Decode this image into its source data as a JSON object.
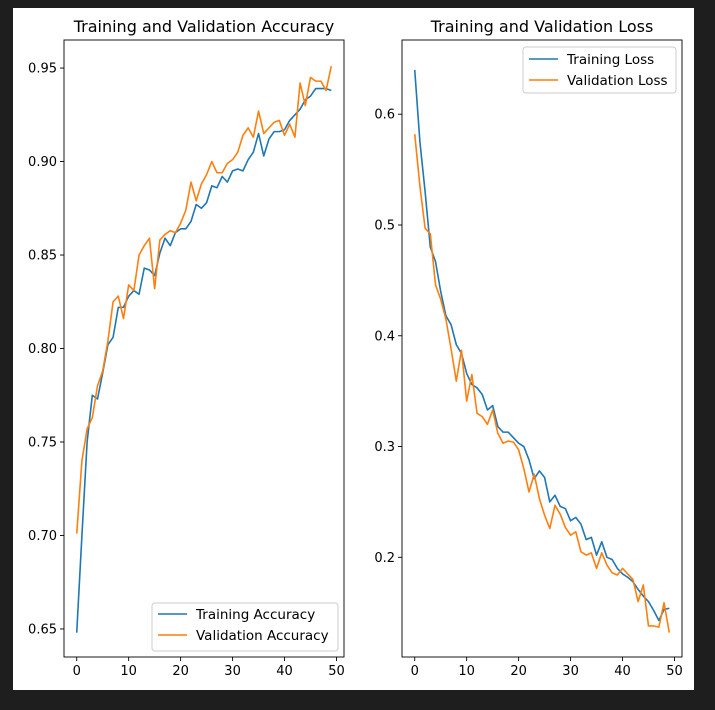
{
  "colors": {
    "training": "#1f77b4",
    "validation": "#ff7f0e",
    "background": "#1e1e1e",
    "figure": "#ffffff"
  },
  "chart_data": [
    {
      "type": "line",
      "title": "Training and Validation Accuracy",
      "xlabel": "",
      "ylabel": "",
      "xlim": [
        -2.45,
        51.45
      ],
      "ylim": [
        0.635,
        0.965
      ],
      "xticks": [
        0,
        10,
        20,
        30,
        40,
        50
      ],
      "yticks": [
        0.65,
        0.7,
        0.75,
        0.8,
        0.85,
        0.9,
        0.95
      ],
      "ytick_labels": [
        "0.65",
        "0.70",
        "0.75",
        "0.80",
        "0.85",
        "0.90",
        "0.95"
      ],
      "legend_position": "lower-right",
      "x": [
        0,
        1,
        2,
        3,
        4,
        5,
        6,
        7,
        8,
        9,
        10,
        11,
        12,
        13,
        14,
        15,
        16,
        17,
        18,
        19,
        20,
        21,
        22,
        23,
        24,
        25,
        26,
        27,
        28,
        29,
        30,
        31,
        32,
        33,
        34,
        35,
        36,
        37,
        38,
        39,
        40,
        41,
        42,
        43,
        44,
        45,
        46,
        47,
        48,
        49
      ],
      "series": [
        {
          "name": "Training Accuracy",
          "color": "#1f77b4",
          "values": [
            0.648,
            0.7,
            0.75,
            0.775,
            0.773,
            0.787,
            0.802,
            0.806,
            0.822,
            0.822,
            0.828,
            0.831,
            0.829,
            0.843,
            0.842,
            0.839,
            0.851,
            0.859,
            0.855,
            0.862,
            0.864,
            0.864,
            0.868,
            0.877,
            0.875,
            0.878,
            0.887,
            0.886,
            0.892,
            0.889,
            0.895,
            0.896,
            0.895,
            0.901,
            0.905,
            0.915,
            0.903,
            0.912,
            0.916,
            0.916,
            0.917,
            0.922,
            0.925,
            0.928,
            0.933,
            0.935,
            0.939,
            0.939,
            0.939,
            0.938
          ]
        },
        {
          "name": "Validation Accuracy",
          "color": "#ff7f0e",
          "values": [
            0.701,
            0.74,
            0.757,
            0.763,
            0.78,
            0.788,
            0.804,
            0.825,
            0.828,
            0.816,
            0.834,
            0.831,
            0.85,
            0.855,
            0.859,
            0.832,
            0.858,
            0.861,
            0.863,
            0.862,
            0.867,
            0.874,
            0.889,
            0.879,
            0.888,
            0.893,
            0.9,
            0.894,
            0.894,
            0.899,
            0.901,
            0.905,
            0.914,
            0.918,
            0.913,
            0.927,
            0.915,
            0.918,
            0.921,
            0.922,
            0.914,
            0.92,
            0.913,
            0.942,
            0.93,
            0.945,
            0.943,
            0.943,
            0.938,
            0.951
          ]
        }
      ]
    },
    {
      "type": "line",
      "title": "Training and Validation Loss",
      "xlabel": "",
      "ylabel": "",
      "xlim": [
        -2.45,
        51.45
      ],
      "ylim": [
        0.11,
        0.667
      ],
      "xticks": [
        0,
        10,
        20,
        30,
        40,
        50
      ],
      "yticks": [
        0.2,
        0.3,
        0.4,
        0.5,
        0.6
      ],
      "ytick_labels": [
        "0.2",
        "0.3",
        "0.4",
        "0.5",
        "0.6"
      ],
      "legend_position": "upper-right",
      "x": [
        0,
        1,
        2,
        3,
        4,
        5,
        6,
        7,
        8,
        9,
        10,
        11,
        12,
        13,
        14,
        15,
        16,
        17,
        18,
        19,
        20,
        21,
        22,
        23,
        24,
        25,
        26,
        27,
        28,
        29,
        30,
        31,
        32,
        33,
        34,
        35,
        36,
        37,
        38,
        39,
        40,
        41,
        42,
        43,
        44,
        45,
        46,
        47,
        48,
        49
      ],
      "series": [
        {
          "name": "Training Loss",
          "color": "#1f77b4",
          "values": [
            0.64,
            0.575,
            0.53,
            0.48,
            0.467,
            0.44,
            0.418,
            0.41,
            0.392,
            0.384,
            0.366,
            0.356,
            0.353,
            0.347,
            0.333,
            0.337,
            0.318,
            0.313,
            0.313,
            0.308,
            0.303,
            0.3,
            0.288,
            0.271,
            0.278,
            0.272,
            0.25,
            0.256,
            0.246,
            0.244,
            0.233,
            0.236,
            0.23,
            0.216,
            0.218,
            0.202,
            0.214,
            0.2,
            0.198,
            0.19,
            0.185,
            0.182,
            0.178,
            0.171,
            0.165,
            0.16,
            0.152,
            0.143,
            0.153,
            0.154
          ]
        },
        {
          "name": "Validation Loss",
          "color": "#ff7f0e",
          "values": [
            0.582,
            0.535,
            0.497,
            0.492,
            0.446,
            0.433,
            0.415,
            0.388,
            0.359,
            0.387,
            0.341,
            0.365,
            0.33,
            0.327,
            0.32,
            0.333,
            0.312,
            0.303,
            0.305,
            0.304,
            0.297,
            0.28,
            0.259,
            0.275,
            0.253,
            0.238,
            0.226,
            0.247,
            0.239,
            0.227,
            0.22,
            0.223,
            0.205,
            0.202,
            0.204,
            0.19,
            0.204,
            0.193,
            0.186,
            0.184,
            0.19,
            0.185,
            0.18,
            0.16,
            0.175,
            0.138,
            0.138,
            0.137,
            0.159,
            0.132
          ]
        }
      ]
    }
  ]
}
